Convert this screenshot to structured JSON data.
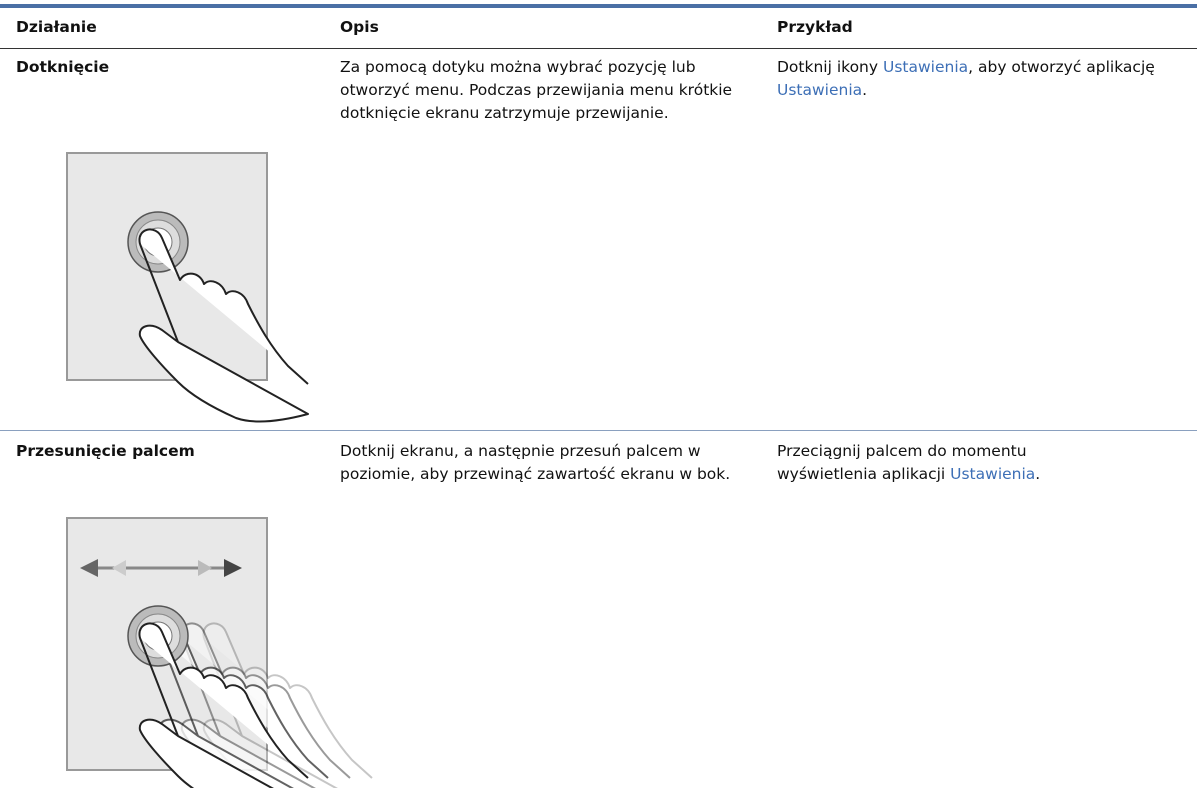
{
  "table": {
    "headers": [
      "Działanie",
      "Opis",
      "Przykład"
    ],
    "rows": [
      {
        "action": "Dotknięcie",
        "description": "Za pomocą dotyku można wybrać pozycję lub otworzyć menu. Podczas przewijania menu krótkie dotknięcie ekranu zatrzymuje przewijanie.",
        "example": [
          "Dotknij ikony ",
          "Ustawienia",
          ", aby otworzyć aplikację ",
          "Ustawienia",
          "."
        ]
      },
      {
        "action": "Przesunięcie palcem",
        "description": "Dotknij ekranu, a następnie przesuń palcem w poziomie, aby przewinąć zawartość ekranu w bok.",
        "example": [
          "Przeciągnij palcem do momentu wyświetlenia aplikacji ",
          "Ustawienia",
          "."
        ]
      }
    ]
  }
}
